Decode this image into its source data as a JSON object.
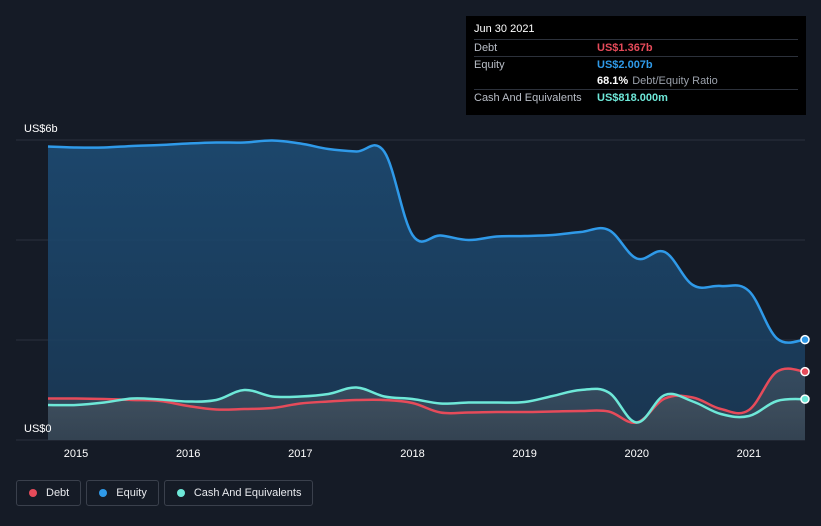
{
  "tooltip": {
    "date": "Jun 30 2021",
    "rows": [
      {
        "label": "Debt",
        "value": "US$1.367b",
        "color": "#e64b5a"
      },
      {
        "label": "Equity",
        "value": "US$2.007b",
        "color": "#2f9ae9"
      },
      {
        "ratio_pct": "68.1%",
        "ratio_label": "Debt/Equity Ratio"
      },
      {
        "label": "Cash And Equivalents",
        "value": "US$818.000m",
        "color": "#6ee8d8"
      }
    ]
  },
  "legend": [
    {
      "label": "Debt",
      "color": "#e64b5a"
    },
    {
      "label": "Equity",
      "color": "#2f9ae9"
    },
    {
      "label": "Cash And Equivalents",
      "color": "#6ee8d8"
    }
  ],
  "chart_data": {
    "type": "area",
    "y_unit_labels": {
      "top": "US$6b",
      "bottom": "US$0"
    },
    "ylim": [
      0,
      6
    ],
    "xlim": [
      2014.75,
      2021.5
    ],
    "x_ticks": [
      "2015",
      "2016",
      "2017",
      "2018",
      "2019",
      "2020",
      "2021"
    ],
    "x_tick_values": [
      2015,
      2016,
      2017,
      2018,
      2019,
      2020,
      2021
    ],
    "grid": true,
    "legend_position": "bottom-left",
    "series": [
      {
        "name": "Equity",
        "color": "#2f9ae9",
        "x": [
          2014.75,
          2015.0,
          2015.25,
          2015.5,
          2015.75,
          2016.0,
          2016.25,
          2016.5,
          2016.75,
          2017.0,
          2017.25,
          2017.5,
          2017.75,
          2018.0,
          2018.25,
          2018.5,
          2018.75,
          2019.0,
          2019.25,
          2019.5,
          2019.75,
          2020.0,
          2020.25,
          2020.5,
          2020.75,
          2021.0,
          2021.25,
          2021.5
        ],
        "y": [
          5.87,
          5.85,
          5.85,
          5.88,
          5.9,
          5.93,
          5.95,
          5.95,
          5.99,
          5.93,
          5.82,
          5.77,
          5.76,
          4.1,
          4.09,
          4.0,
          4.07,
          4.08,
          4.1,
          4.16,
          4.2,
          3.63,
          3.76,
          3.1,
          3.08,
          2.98,
          2.03,
          2.007
        ]
      },
      {
        "name": "Debt",
        "color": "#e64b5a",
        "x": [
          2014.75,
          2015.0,
          2015.25,
          2015.5,
          2015.75,
          2016.0,
          2016.25,
          2016.5,
          2016.75,
          2017.0,
          2017.25,
          2017.5,
          2017.75,
          2018.0,
          2018.25,
          2018.5,
          2018.75,
          2019.0,
          2019.25,
          2019.5,
          2019.75,
          2020.0,
          2020.25,
          2020.5,
          2020.75,
          2021.0,
          2021.25,
          2021.5
        ],
        "y": [
          0.83,
          0.83,
          0.82,
          0.8,
          0.78,
          0.68,
          0.61,
          0.62,
          0.64,
          0.73,
          0.77,
          0.8,
          0.8,
          0.74,
          0.55,
          0.55,
          0.56,
          0.56,
          0.57,
          0.58,
          0.57,
          0.35,
          0.83,
          0.85,
          0.62,
          0.6,
          1.367,
          1.367
        ]
      },
      {
        "name": "Cash And Equivalents",
        "color": "#6ee8d8",
        "x": [
          2014.75,
          2015.0,
          2015.25,
          2015.5,
          2015.75,
          2016.0,
          2016.25,
          2016.5,
          2016.75,
          2017.0,
          2017.25,
          2017.5,
          2017.75,
          2018.0,
          2018.25,
          2018.5,
          2018.75,
          2019.0,
          2019.25,
          2019.5,
          2019.75,
          2020.0,
          2020.25,
          2020.5,
          2020.75,
          2021.0,
          2021.25,
          2021.5
        ],
        "y": [
          0.7,
          0.7,
          0.75,
          0.83,
          0.81,
          0.77,
          0.8,
          1.0,
          0.87,
          0.87,
          0.92,
          1.05,
          0.87,
          0.82,
          0.73,
          0.75,
          0.75,
          0.76,
          0.88,
          1.0,
          0.95,
          0.35,
          0.9,
          0.77,
          0.52,
          0.48,
          0.78,
          0.818
        ]
      }
    ]
  }
}
